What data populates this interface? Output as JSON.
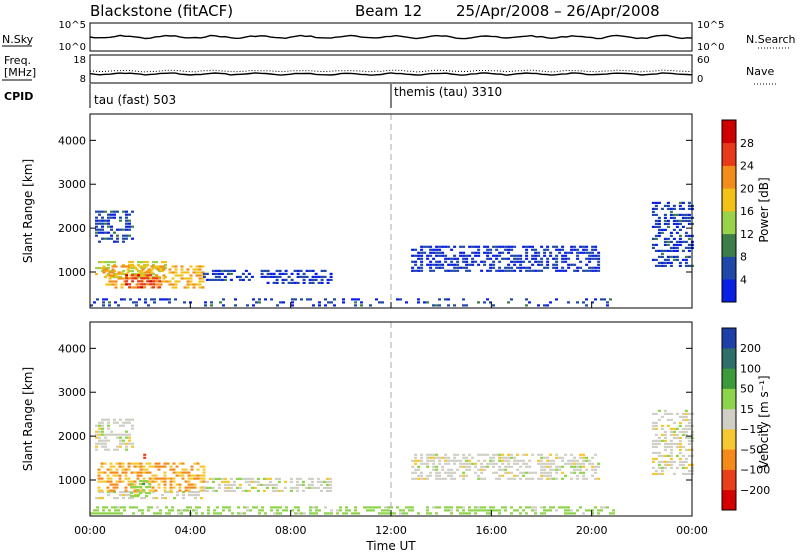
{
  "header": {
    "station": "Blackstone (fitACF)",
    "beam": "Beam 12",
    "date_range": "25/Apr/2008 – 26/Apr/2008"
  },
  "strip_labels": {
    "nsky": "N.Sky",
    "nsearch": "N.Search",
    "freq_line1": "Freq.",
    "freq_line2": "[MHz]",
    "nave": "Nave",
    "cpid": "CPID"
  },
  "strip_ticks": {
    "nsky_left": [
      "10^5",
      "10^0"
    ],
    "nsky_right": [
      "10^5",
      "10^0"
    ],
    "freq_left": [
      "18",
      "8"
    ],
    "nave_right": [
      "60",
      "0"
    ]
  },
  "cpid_segments": [
    {
      "label": "tau (fast) 503",
      "start_hour": 0
    },
    {
      "label": "themis (tau) 3310",
      "start_hour": 12
    }
  ],
  "x_axis": {
    "label": "Time UT",
    "ticks": [
      "00:00",
      "04:00",
      "08:00",
      "12:00",
      "16:00",
      "20:00",
      "00:00"
    ],
    "range_hours": [
      0,
      24
    ]
  },
  "panels": [
    {
      "ylabel": "Slant Range [km]",
      "yticks": [
        "1000",
        "2000",
        "3000",
        "4000"
      ],
      "colorbar": {
        "label": "Power [dB]",
        "ticks": [
          "4",
          "8",
          "12",
          "16",
          "20",
          "24",
          "28"
        ],
        "colors": [
          "#0a1fe6",
          "#1f48a8",
          "#3d7d4a",
          "#9ad24a",
          "#f2c21a",
          "#f28c1a",
          "#e83a1a",
          "#cf0000"
        ]
      }
    },
    {
      "ylabel": "Slant Range [km]",
      "yticks": [
        "1000",
        "2000",
        "3000",
        "4000"
      ],
      "colorbar": {
        "label": "Velocity [m s⁻¹]",
        "ticks": [
          "200",
          "100",
          "50",
          "15",
          "−15",
          "−50",
          "−100",
          "−200"
        ],
        "colors": [
          "#1f3fa8",
          "#2f6f6a",
          "#3d9a3a",
          "#8ed44a",
          "#cfcfc6",
          "#f5c832",
          "#f58a1a",
          "#e8401a",
          "#d40000"
        ]
      }
    }
  ],
  "chart_data": [
    {
      "type": "heatmap",
      "title": "Power",
      "xlabel": "Time UT",
      "ylabel": "Slant Range [km]",
      "xlim": [
        0,
        24
      ],
      "ylim": [
        180,
        4600
      ],
      "colorbar_label": "Power [dB]",
      "clim": [
        0,
        32
      ],
      "regions": [
        {
          "t0": 0.2,
          "t1": 1.7,
          "r0": 1650,
          "r1": 2400,
          "v": 6
        },
        {
          "t0": 0.2,
          "t1": 3.0,
          "r0": 850,
          "r1": 1250,
          "v": 16
        },
        {
          "t0": 0.5,
          "t1": 4.5,
          "r0": 650,
          "r1": 1150,
          "v": 20
        },
        {
          "t0": 1.4,
          "t1": 2.8,
          "r0": 650,
          "r1": 950,
          "v": 26
        },
        {
          "t0": 4.5,
          "t1": 6.5,
          "r0": 800,
          "r1": 1050,
          "v": 5
        },
        {
          "t0": 6.8,
          "t1": 9.6,
          "r0": 750,
          "r1": 1050,
          "v": 4
        },
        {
          "t0": 12.8,
          "t1": 20.3,
          "r0": 1000,
          "r1": 1600,
          "v": 4
        },
        {
          "t0": 22.4,
          "t1": 24.0,
          "r0": 1100,
          "r1": 2600,
          "v": 5
        },
        {
          "t0": 0.0,
          "t1": 21.0,
          "r0": 200,
          "r1": 400,
          "v": 5
        }
      ]
    },
    {
      "type": "heatmap",
      "title": "Velocity",
      "xlabel": "Time UT",
      "ylabel": "Slant Range [km]",
      "xlim": [
        0,
        24
      ],
      "ylim": [
        180,
        4600
      ],
      "colorbar_label": "Velocity [m s⁻¹]",
      "clim": [
        -200,
        200
      ],
      "regions": [
        {
          "t0": 0.2,
          "t1": 1.7,
          "r0": 1650,
          "r1": 2400,
          "v": 0
        },
        {
          "t0": 0.2,
          "t1": 4.5,
          "r0": 600,
          "r1": 750,
          "v": 0
        },
        {
          "t0": 0.3,
          "t1": 4.5,
          "r0": 750,
          "r1": 1400,
          "v": -50
        },
        {
          "t0": 1.6,
          "t1": 2.4,
          "r0": 650,
          "r1": 1000,
          "v": 40
        },
        {
          "t0": 2.0,
          "t1": 2.2,
          "r0": 1500,
          "r1": 1600,
          "v": -180
        },
        {
          "t0": 4.5,
          "t1": 9.6,
          "r0": 750,
          "r1": 1050,
          "v": 0
        },
        {
          "t0": 12.8,
          "t1": 20.3,
          "r0": 1000,
          "r1": 1600,
          "v": 0
        },
        {
          "t0": 22.4,
          "t1": 24.0,
          "r0": 1100,
          "r1": 2600,
          "v": 0
        },
        {
          "t0": 0.0,
          "t1": 21.0,
          "r0": 200,
          "r1": 400,
          "v": 30
        }
      ]
    }
  ]
}
